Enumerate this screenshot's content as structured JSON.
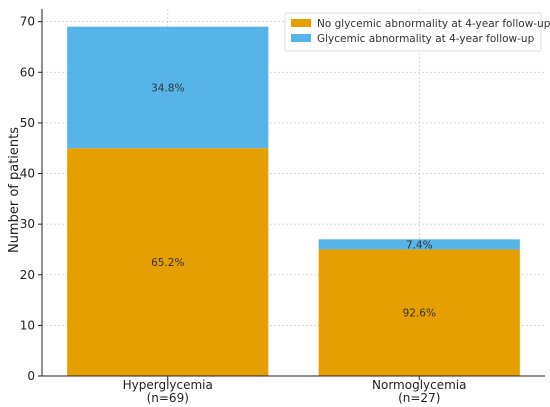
{
  "chart_data": {
    "type": "bar",
    "stacked": true,
    "categories": [
      "Hyperglycemia\n(n=69)",
      "Normoglycemia\n(n=27)"
    ],
    "series": [
      {
        "name": "No glycemic abnormality at 4-year follow-up",
        "values": [
          45,
          25
        ],
        "labels": [
          "65.2%",
          "92.6%"
        ],
        "color": "#E69F00"
      },
      {
        "name": "Glycemic abnormality at 4-year follow-up",
        "values": [
          24,
          2
        ],
        "labels": [
          "34.8%",
          "7.4%"
        ],
        "color": "#56B4E9"
      }
    ],
    "ylabel": "Number of patients",
    "xlabel": "",
    "ylim": [
      0,
      72.5
    ],
    "yticks": [
      0,
      10,
      20,
      30,
      40,
      50,
      60,
      70
    ],
    "grid": true,
    "legend_position": "top-right"
  }
}
